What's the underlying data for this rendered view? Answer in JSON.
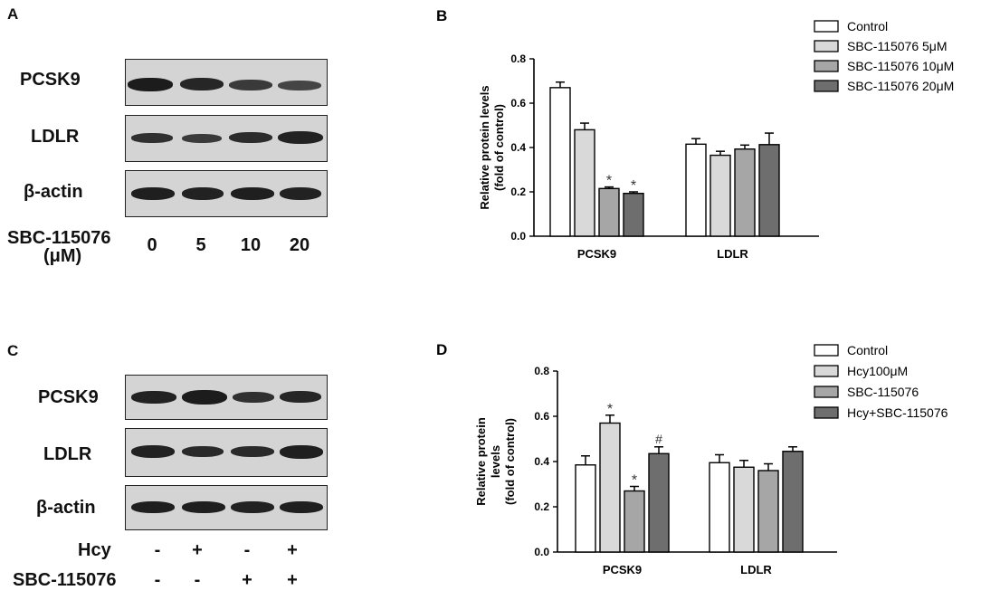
{
  "panels": {
    "A": {
      "letter": "A",
      "rows": [
        "PCSK9",
        "LDLR",
        "β-actin"
      ],
      "treatment_label": "SBC-115076",
      "treatment_unit": "(μM)",
      "doses": [
        "0",
        "5",
        "10",
        "20"
      ]
    },
    "C": {
      "letter": "C",
      "rows": [
        "PCSK9",
        "LDLR",
        "β-actin"
      ],
      "treatments": [
        {
          "label": "Hcy",
          "values": [
            "-",
            "+",
            "-",
            "+"
          ]
        },
        {
          "label": "SBC-115076",
          "values": [
            "-",
            "-",
            "+",
            "+"
          ]
        }
      ]
    }
  },
  "chart_data": [
    {
      "letter": "B",
      "type": "bar",
      "ylabel": [
        "Relative protein levels",
        "(fold of control)"
      ],
      "ylim": [
        0,
        0.8
      ],
      "yticks": [
        "0.0",
        "0.2",
        "0.4",
        "0.6",
        "0.8"
      ],
      "categories": [
        "PCSK9",
        "LDLR"
      ],
      "series": [
        {
          "name": "Control",
          "color": "#ffffff",
          "values": [
            0.67,
            0.415
          ],
          "errors": [
            0.025,
            0.025
          ],
          "sig": [
            "",
            ""
          ]
        },
        {
          "name": "SBC-115076 5μM",
          "color": "#d9d9d9",
          "values": [
            0.48,
            0.365
          ],
          "errors": [
            0.03,
            0.018
          ],
          "sig": [
            "",
            ""
          ]
        },
        {
          "name": "SBC-115076 10μM",
          "color": "#a6a6a6",
          "values": [
            0.215,
            0.393
          ],
          "errors": [
            0.007,
            0.018
          ],
          "sig": [
            "*",
            ""
          ]
        },
        {
          "name": "SBC-115076 20μM",
          "color": "#6e6e6e",
          "values": [
            0.193,
            0.413
          ],
          "errors": [
            0.007,
            0.052
          ],
          "sig": [
            "*",
            ""
          ]
        }
      ],
      "legend_position": "top-right",
      "grid": false
    },
    {
      "letter": "D",
      "type": "bar",
      "ylabel": [
        "Relative protein",
        "levels",
        "(fold of control)"
      ],
      "ylim": [
        0,
        0.8
      ],
      "yticks": [
        "0.0",
        "0.2",
        "0.4",
        "0.6",
        "0.8"
      ],
      "categories": [
        "PCSK9",
        "LDLR"
      ],
      "series": [
        {
          "name": "Control",
          "color": "#ffffff",
          "values": [
            0.385,
            0.395
          ],
          "errors": [
            0.04,
            0.035
          ],
          "sig": [
            "",
            ""
          ]
        },
        {
          "name": "Hcy100μM",
          "color": "#d9d9d9",
          "values": [
            0.57,
            0.375
          ],
          "errors": [
            0.035,
            0.03
          ],
          "sig": [
            "*",
            ""
          ]
        },
        {
          "name": "SBC-115076",
          "color": "#a6a6a6",
          "values": [
            0.27,
            0.36
          ],
          "errors": [
            0.02,
            0.03
          ],
          "sig": [
            "*",
            ""
          ]
        },
        {
          "name": "Hcy+SBC-115076",
          "color": "#6e6e6e",
          "values": [
            0.435,
            0.445
          ],
          "errors": [
            0.03,
            0.02
          ],
          "sig": [
            "#",
            ""
          ]
        }
      ],
      "legend_position": "top-right",
      "grid": false
    }
  ]
}
